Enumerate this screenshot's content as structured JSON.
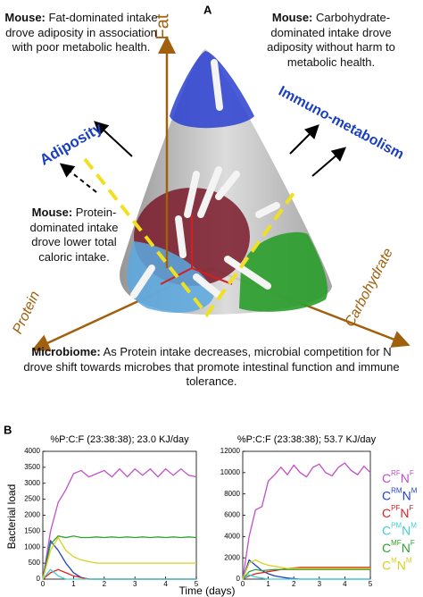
{
  "panel_a": {
    "label": "A",
    "fat_note": {
      "subject": "Mouse:",
      "text": "Fat-dominated intake drove adiposity in association with poor metabolic health."
    },
    "carbohydrate_note": {
      "subject": "Mouse:",
      "text": "Carbohydrate-dominated intake drove adiposity without harm to metabolic health."
    },
    "protein_note": {
      "subject": "Mouse:",
      "text": "Protein-dominated intake drove lower total caloric intake."
    },
    "microbiome_note": {
      "subject": "Microbiome:",
      "text": "As Protein intake decreases, microbial competition for N drove shift towards microbes that promote intestinal function and immune tolerance."
    },
    "axes": {
      "fat": "Fat",
      "protein": "Protein",
      "carbohydrate": "Carbohydrate"
    },
    "arrows": {
      "adiposity": "Adiposity",
      "immuno_metabolism": "Immuno-metabolism"
    }
  },
  "panel_b": {
    "label": "B",
    "y_label": "Bacterial load",
    "x_label": "Time (days)"
  },
  "chart_data": [
    {
      "type": "line",
      "title": "%P:C:F (23:38:38); 23.0 KJ/day",
      "x": [
        0,
        0.25,
        0.5,
        0.75,
        1,
        1.25,
        1.5,
        1.75,
        2,
        2.25,
        2.5,
        2.75,
        3,
        3.25,
        3.5,
        3.75,
        4,
        4.25,
        4.5,
        4.75,
        5
      ],
      "xlim": [
        0,
        5
      ],
      "xticks": [
        0,
        1,
        2,
        3,
        4,
        5
      ],
      "ylim": [
        0,
        4000
      ],
      "yticks": [
        0,
        500,
        1000,
        1500,
        2000,
        2500,
        3000,
        3500,
        4000
      ],
      "series": [
        {
          "color": "#c050c8",
          "values": [
            0,
            1500,
            2400,
            2800,
            3300,
            3400,
            3200,
            3300,
            3400,
            3200,
            3450,
            3200,
            3450,
            3250,
            3450,
            3200,
            3450,
            3250,
            3450,
            3250,
            3200
          ]
        },
        {
          "color": "#2040c0",
          "values": [
            0,
            1200,
            900,
            500,
            200,
            50,
            0,
            0,
            0,
            0,
            0,
            0,
            0,
            0,
            0,
            0,
            0,
            0,
            0,
            0,
            0
          ]
        },
        {
          "color": "#e02020",
          "values": [
            0,
            200,
            300,
            200,
            100,
            50,
            0,
            0,
            0,
            0,
            0,
            0,
            0,
            0,
            0,
            0,
            0,
            0,
            0,
            0,
            0
          ]
        },
        {
          "color": "#40d0d0",
          "values": [
            0,
            300,
            100,
            0,
            0,
            0,
            0,
            0,
            0,
            0,
            0,
            0,
            0,
            0,
            0,
            0,
            0,
            0,
            0,
            0,
            0
          ]
        },
        {
          "color": "#30a030",
          "values": [
            0,
            1100,
            1350,
            1300,
            1350,
            1300,
            1300,
            1320,
            1300,
            1320,
            1300,
            1320,
            1300,
            1320,
            1300,
            1320,
            1300,
            1320,
            1300,
            1320,
            1300
          ]
        },
        {
          "color": "#d8d020",
          "values": [
            0,
            900,
            1300,
            900,
            700,
            600,
            550,
            500,
            500,
            500,
            500,
            500,
            500,
            500,
            500,
            500,
            500,
            500,
            500,
            500,
            500
          ]
        }
      ]
    },
    {
      "type": "line",
      "title": "%P:C:F (23:38:38); 53.7 KJ/day",
      "x": [
        0,
        0.25,
        0.5,
        0.75,
        1,
        1.25,
        1.5,
        1.75,
        2,
        2.25,
        2.5,
        2.75,
        3,
        3.25,
        3.5,
        3.75,
        4,
        4.25,
        4.5,
        4.75,
        5
      ],
      "xlim": [
        0,
        5
      ],
      "xticks": [
        0,
        1,
        2,
        3,
        4,
        5
      ],
      "ylim": [
        0,
        12000
      ],
      "yticks": [
        0,
        2000,
        4000,
        6000,
        8000,
        10000,
        12000
      ],
      "series": [
        {
          "name": [
            "C",
            "RF",
            "N",
            "F"
          ],
          "color": "#c050c8",
          "values": [
            0,
            4000,
            6500,
            6800,
            9200,
            9800,
            10500,
            9800,
            10700,
            10000,
            9600,
            10500,
            10800,
            10000,
            9700,
            10500,
            10900,
            10200,
            9800,
            10600,
            10000
          ]
        },
        {
          "name": [
            "C",
            "RM",
            "N",
            "M"
          ],
          "color": "#2040c0",
          "values": [
            0,
            1800,
            1300,
            800,
            500,
            300,
            200,
            100,
            50,
            0,
            0,
            0,
            0,
            0,
            0,
            0,
            0,
            0,
            0,
            0,
            0
          ]
        },
        {
          "name": [
            "C",
            "PF",
            "N",
            "F"
          ],
          "color": "#e02020",
          "values": [
            0,
            300,
            500,
            600,
            700,
            800,
            900,
            1000,
            1050,
            1100,
            1100,
            1100,
            1100,
            1100,
            1100,
            1100,
            1100,
            1100,
            1100,
            1100,
            1100
          ]
        },
        {
          "name": [
            "C",
            "PM",
            "N",
            "M"
          ],
          "color": "#40d0d0",
          "values": [
            0,
            400,
            200,
            100,
            0,
            0,
            0,
            0,
            0,
            0,
            0,
            0,
            0,
            0,
            0,
            0,
            0,
            0,
            0,
            0,
            0
          ]
        },
        {
          "name": [
            "C",
            "MF",
            "N",
            "F"
          ],
          "color": "#30a030",
          "values": [
            0,
            700,
            900,
            800,
            850,
            900,
            900,
            900,
            900,
            900,
            900,
            900,
            900,
            900,
            900,
            900,
            900,
            900,
            900,
            900,
            900
          ]
        },
        {
          "name": [
            "C",
            "M",
            "N",
            "M"
          ],
          "color": "#d8d020",
          "values": [
            0,
            1500,
            1800,
            1500,
            1300,
            1200,
            1100,
            1000,
            1000,
            1000,
            1000,
            1000,
            1000,
            1000,
            1000,
            1000,
            1000,
            1000,
            1000,
            1000,
            1000
          ]
        }
      ]
    }
  ]
}
